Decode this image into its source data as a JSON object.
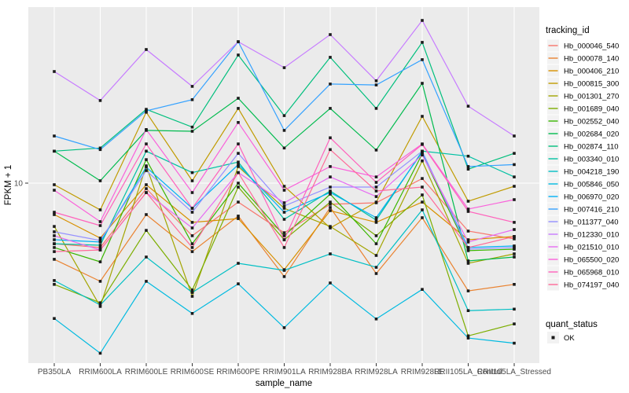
{
  "style": {
    "panel_bg": "#EBEBEB",
    "grid_color": "#FFFFFF",
    "axis_text_color": "#4D4D4D",
    "tick_mark_color": "#333333",
    "legend_key_bg": "#F2F2F2",
    "marker_color": "#1A1A1A",
    "title_text_color": "#000000"
  },
  "chart_data": {
    "type": "line",
    "title": "",
    "xlabel": "sample_name",
    "ylabel": "FPKM + 1",
    "y_scale": "log10",
    "grid": "major vertical per category, horizontal at 10",
    "legend_position": "right",
    "ylim": [
      1.06,
      89.7
    ],
    "y_ticks": [
      {
        "label": "10",
        "value": 10
      }
    ],
    "x_categories": [
      "PB350LA",
      "RRIM600LA",
      "RRIM600LE",
      "RRIM600SE",
      "RRIM600PE",
      "RRIM901LA",
      "RRIM928BA",
      "RRIM928LA",
      "RRIM928LE",
      "RRII105LA_Control",
      "RRII105LA_Stressed"
    ],
    "legend": {
      "tracking_title": "tracking_id",
      "quant_title": "quant_status",
      "quant_items": [
        {
          "label": "OK",
          "marker": "black-square"
        }
      ]
    },
    "series": [
      {
        "name": "Hb_000046_540",
        "color": "#F8766D",
        "values": [
          4.7,
          4.48,
          9.34,
          5.19,
          7.9,
          5.39,
          7.68,
          7.83,
          10.6,
          5.5,
          4.99
        ]
      },
      {
        "name": "Hb_000078_140",
        "color": "#EA8331",
        "values": [
          3.87,
          2.94,
          6.76,
          4.26,
          6.63,
          3.12,
          7.38,
          3.24,
          6.5,
          2.61,
          2.83
        ]
      },
      {
        "name": "Hb_000406_210",
        "color": "#D89000",
        "values": [
          6.76,
          5.04,
          9.81,
          6.13,
          6.43,
          3.4,
          7.1,
          6.13,
          7.9,
          4.94,
          5.14
        ]
      },
      {
        "name": "Hb_000815_300",
        "color": "#C09B00",
        "values": [
          9.81,
          7.17,
          24.2,
          10.3,
          25.4,
          9.62,
          5.72,
          7.9,
          23.0,
          7.98,
          9.62
        ]
      },
      {
        "name": "Hb_001301_270",
        "color": "#A3A500",
        "values": [
          5.83,
          2.15,
          12.4,
          2.44,
          12.3,
          7.31,
          5.83,
          4.06,
          13.2,
          3.68,
          4.14
        ]
      },
      {
        "name": "Hb_001689_040",
        "color": "#7CAE00",
        "values": [
          2.83,
          2.25,
          5.55,
          2.64,
          9.52,
          4.94,
          7.9,
          5.19,
          8.63,
          1.49,
          1.73
        ]
      },
      {
        "name": "Hb_002552_040",
        "color": "#39B600",
        "values": [
          4.48,
          3.75,
          13.4,
          4.7,
          10.0,
          5.19,
          8.72,
          4.7,
          14.4,
          4.31,
          4.39
        ]
      },
      {
        "name": "Hb_002684_020",
        "color": "#00BB4E",
        "values": [
          14.9,
          10.3,
          19.3,
          19.1,
          28.8,
          15.5,
          25.4,
          15.1,
          34.7,
          3.79,
          3.98
        ]
      },
      {
        "name": "Hb_002874_110",
        "color": "#00BF7D",
        "values": [
          14.9,
          15.5,
          25.1,
          20.1,
          49.4,
          23.2,
          48.0,
          25.4,
          57.8,
          11.9,
          14.5
        ]
      },
      {
        "name": "Hb_003340_010",
        "color": "#00C1A3",
        "values": [
          4.7,
          4.61,
          14.9,
          11.4,
          13.0,
          6.37,
          9.07,
          6.31,
          14.9,
          14.0,
          10.8
        ]
      },
      {
        "name": "Hb_004218_190",
        "color": "#00BFC4",
        "values": [
          2.97,
          2.19,
          3.98,
          2.56,
          3.68,
          3.37,
          4.14,
          3.5,
          7.17,
          2.04,
          2.08
        ]
      },
      {
        "name": "Hb_005846_050",
        "color": "#00BAE0",
        "values": [
          1.85,
          1.2,
          2.94,
          1.97,
          2.85,
          1.65,
          2.88,
          1.84,
          2.66,
          1.45,
          1.36
        ]
      },
      {
        "name": "Hb_006970_020",
        "color": "#00B0F6",
        "values": [
          4.94,
          4.8,
          12.2,
          7.31,
          12.6,
          6.96,
          8.89,
          6.5,
          14.7,
          4.48,
          4.57
        ]
      },
      {
        "name": "Hb_007416_210",
        "color": "#35A2FF",
        "values": [
          18.0,
          15.2,
          24.6,
          28.3,
          58.3,
          19.3,
          34.4,
          34.0,
          46.6,
          12.3,
          12.6
        ]
      },
      {
        "name": "Hb_011377_040",
        "color": "#9590FF",
        "values": [
          5.45,
          4.89,
          11.7,
          6.96,
          14.5,
          7.53,
          9.52,
          9.52,
          14.9,
          4.39,
          4.48
        ]
      },
      {
        "name": "Hb_012330_010",
        "color": "#C77CFF",
        "values": [
          40.2,
          28.0,
          52.9,
          33.4,
          58.3,
          42.2,
          63.7,
          35.8,
          76.0,
          26.1,
          18.0
        ]
      },
      {
        "name": "Hb_021510_010",
        "color": "#E76BF3",
        "values": [
          5.19,
          4.35,
          8.89,
          5.72,
          11.4,
          7.83,
          10.8,
          8.46,
          14.2,
          4.8,
          5.61
        ]
      },
      {
        "name": "Hb_065500_020",
        "color": "#FA62DB",
        "values": [
          9.16,
          6.19,
          19.5,
          8.89,
          21.3,
          9.16,
          12.3,
          10.8,
          16.3,
          7.24,
          8.14
        ]
      },
      {
        "name": "Hb_065968_010",
        "color": "#FF62BC",
        "values": [
          6.96,
          5.89,
          16.3,
          7.31,
          16.3,
          4.94,
          17.6,
          10.1,
          16.2,
          7.03,
          6.13
        ]
      },
      {
        "name": "Hb_074197_040",
        "color": "#FF6A98",
        "values": [
          4.26,
          4.35,
          8.89,
          4.48,
          11.4,
          4.48,
          15.2,
          9.07,
          9.52,
          4.48,
          5.14
        ]
      }
    ]
  }
}
